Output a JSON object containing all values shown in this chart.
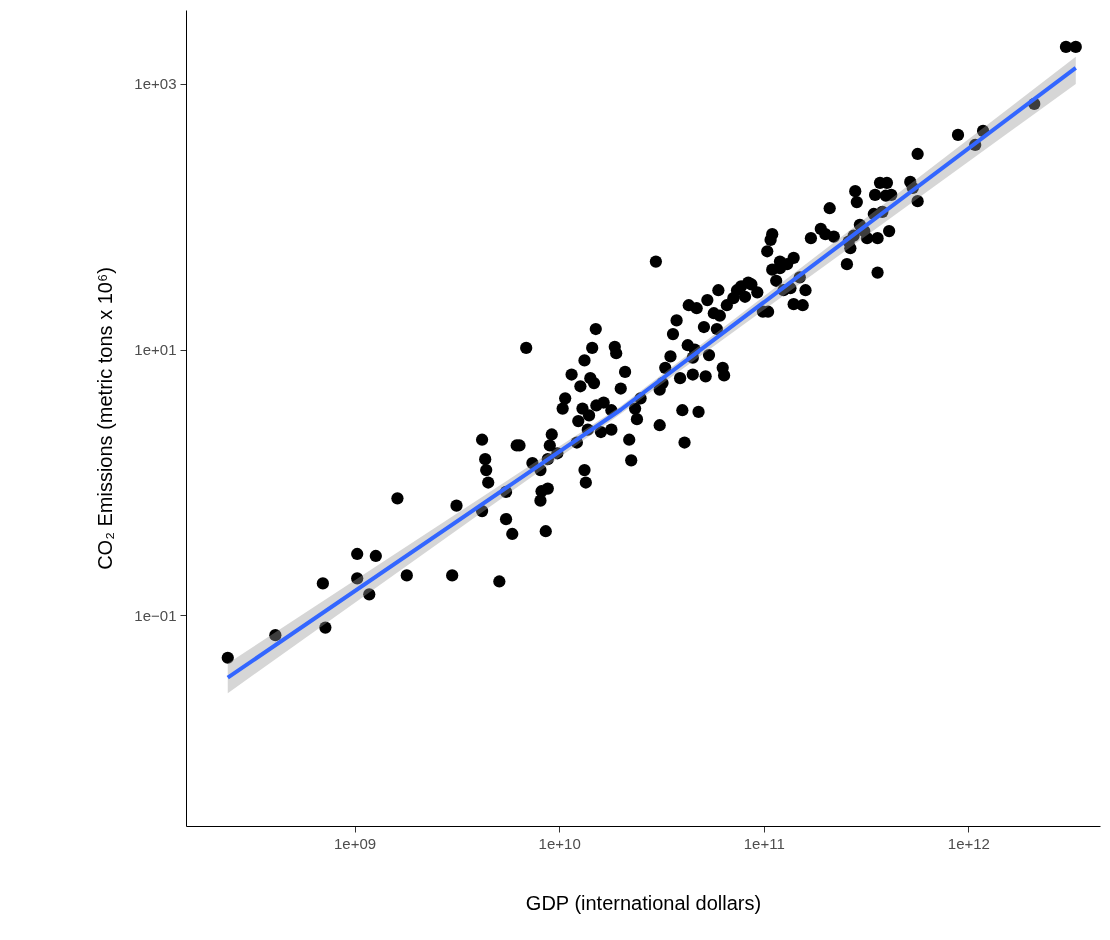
{
  "chart_data": {
    "type": "scatter",
    "xlabel": "GDP (international dollars)",
    "ylabel": "CO₂ Emissions (metric tons x 10⁶)",
    "log": "xy",
    "grid": false,
    "marker": "circle",
    "xlim": [
      150000000.0,
      4400000000000.0
    ],
    "ylim": [
      0.0026,
      3600
    ],
    "xticks": [
      {
        "value": 1000000000.0,
        "label": "1e+09"
      },
      {
        "value": 10000000000.0,
        "label": "1e+10"
      },
      {
        "value": 100000000000.0,
        "label": "1e+11"
      },
      {
        "value": 1000000000000.0,
        "label": "1e+12"
      }
    ],
    "yticks": [
      {
        "value": 0.1,
        "label": "1e−01"
      },
      {
        "value": 10,
        "label": "1e+01"
      },
      {
        "value": 1000,
        "label": "1e+03"
      }
    ],
    "series": [
      {
        "color": "#000000",
        "x": [
          240000000.0,
          410000000.0,
          700000000.0,
          720000000.0,
          1030000000.0,
          1030000000.0,
          1180000000.0,
          1270000000.0,
          1620000000.0,
          1800000000.0,
          3000000000.0,
          3150000000.0,
          5100000000.0,
          4200000000.0,
          4350000000.0,
          4400000000.0,
          4500000000.0,
          4200000000.0,
          5500000000.0,
          5500000000.0,
          5900000000.0,
          6200000000.0,
          6400000000.0,
          6900000000.0,
          7400000000.0,
          8100000000.0,
          8100000000.0,
          8200000000.0,
          8600000000.0,
          8800000000.0,
          8800000000.0,
          9000000000.0,
          9200000000.0,
          9800000000.0,
          10400000000.0,
          10700000000.0,
          11500000000.0,
          12400000000.0,
          12200000000.0,
          12700000000.0,
          13000000000.0,
          13300000000.0,
          13800000000.0,
          13300000000.0,
          13500000000.0,
          14000000000.0,
          14200000000.0,
          14500000000.0,
          14800000000.0,
          15100000000.0,
          15200000000.0,
          16000000000.0,
          16500000000.0,
          18000000000.0,
          18000000000.0,
          18700000000.0,
          19000000000.0,
          20000000000.0,
          21000000000.0,
          22000000000.0,
          22500000000.0,
          23500000000.0,
          24000000000.0,
          25000000000.0,
          29700000000.0,
          31000000000.0,
          31000000000.0,
          32000000000.0,
          33000000000.0,
          35000000000.0,
          36000000000.0,
          37500000000.0,
          39000000000.0,
          40000000000.0,
          41000000000.0,
          42500000000.0,
          43000000000.0,
          45000000000.0,
          45000000000.0,
          46000000000.0,
          47000000000.0,
          48000000000.0,
          51000000000.0,
          52000000000.0,
          53000000000.0,
          54000000000.0,
          57000000000.0,
          59000000000.0,
          60000000000.0,
          61000000000.0,
          63000000000.0,
          64000000000.0,
          66000000000.0,
          71000000000.0,
          74000000000.0,
          77500000000.0,
          81000000000.0,
          84000000000.0,
          87000000000.0,
          93000000000.0,
          99000000000.0,
          105000000000.0,
          104000000000.0,
          108000000000.0,
          110000000000.0,
          110000000000.0,
          115000000000.0,
          120000000000.0,
          120000000000.0,
          125000000000.0,
          130000000000.0,
          135000000000.0,
          140000000000.0,
          140000000000.0,
          150000000000.0,
          155000000000.0,
          160000000000.0,
          170000000000.0,
          190000000000.0,
          200000000000.0,
          210000000000.0,
          220000000000.0,
          255000000000.0,
          260000000000.0,
          265000000000.0,
          275000000000.0,
          280000000000.0,
          285000000000.0,
          295000000000.0,
          310000000000.0,
          320000000000.0,
          345000000000.0,
          350000000000.0,
          360000000000.0,
          360000000000.0,
          370000000000.0,
          380000000000.0,
          395000000000.0,
          400000000000.0,
          410000000000.0,
          420000000000.0,
          520000000000.0,
          535000000000.0,
          565000000000.0,
          565000000000.0,
          890000000000.0,
          1080000000000.0,
          1180000000000.0,
          2100000000000.0,
          3000000000000.0,
          3350000000000.0
        ],
        "values": [
          0.048,
          0.071,
          0.174,
          0.081,
          0.29,
          0.19,
          0.144,
          0.28,
          0.76,
          0.2,
          0.2,
          0.67,
          0.18,
          2.1,
          1.5,
          1.24,
          1.0,
          0.61,
          0.85,
          0.53,
          0.41,
          1.9,
          1.9,
          10.3,
          1.4,
          1.24,
          0.73,
          0.86,
          0.43,
          0.9,
          1.5,
          1.9,
          2.3,
          1.66,
          3.6,
          4.3,
          6.5,
          2.9,
          2.0,
          5.3,
          3.6,
          8.3,
          2.5,
          1.24,
          1.0,
          3.2,
          6.1,
          10.3,
          5.6,
          14.3,
          3.8,
          2.4,
          4.0,
          3.5,
          2.5,
          10.5,
          9.4,
          5.1,
          6.8,
          2.1,
          1.47,
          3.6,
          3.0,
          4.3,
          46,
          2.7,
          5.0,
          5.6,
          7.3,
          8.9,
          13.1,
          16.6,
          6.1,
          3.5,
          2.0,
          10.8,
          21.6,
          6.5,
          8.7,
          10,
          20.5,
          3.4,
          14.8,
          6.3,
          23.6,
          9.1,
          18.8,
          14.3,
          28,
          18,
          7.3,
          6.4,
          21.6,
          24.4,
          28,
          30,
          25,
          32,
          31,
          27,
          19.3,
          19.3,
          55,
          67,
          74,
          40,
          33,
          46,
          41,
          28,
          44,
          29,
          49,
          22,
          35,
          21.6,
          28,
          69,
          81,
          74,
          116,
          71,
          44,
          65,
          58,
          72,
          156,
          129,
          87,
          78,
          69,
          105,
          146,
          38,
          69,
          180,
          109,
          144,
          180,
          78,
          146,
          183,
          165,
          297,
          131,
          413,
          347,
          443,
          707,
          1900,
          1900
        ]
      },
      {
        "type": "line",
        "marker": "none",
        "line_style": "solid",
        "color": "#3366ff",
        "x": [
          240000000.0,
          20000000000.0,
          3350000000000.0
        ],
        "values": [
          0.034,
          3.53,
          1320
        ],
        "lower": [
          0.026,
          3.3,
          1000
        ],
        "upper": [
          0.0435,
          3.75,
          1600
        ]
      }
    ]
  }
}
